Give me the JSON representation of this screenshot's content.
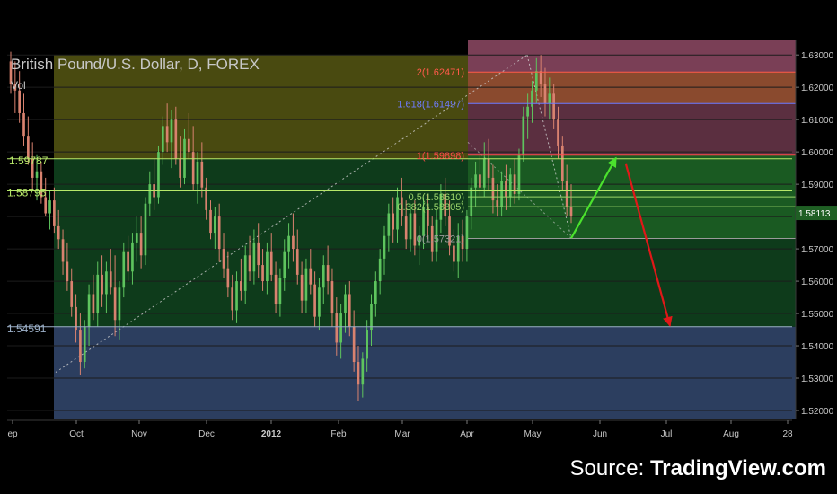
{
  "header": {
    "title": "British Pound/U.S. Dollar, D, FOREX",
    "volume_label": "Vol"
  },
  "footer": {
    "source_prefix": "Source: ",
    "source_brand": "TradingView.com"
  },
  "chart_data": {
    "type": "candlestick",
    "symbol": "GBPUSD",
    "interval": "D",
    "x_ticks": [
      "ep",
      "Oct",
      "Nov",
      "Dec",
      "2012",
      "Feb",
      "Mar",
      "Apr",
      "May",
      "Jun",
      "Jul",
      "Aug",
      "28"
    ],
    "y_ticks": [
      1.63,
      1.62,
      1.61,
      1.6,
      1.59,
      1.58,
      1.57,
      1.56,
      1.55,
      1.54,
      1.53,
      1.52
    ],
    "ylim": [
      1.5175,
      1.6345
    ],
    "last_price": 1.58113,
    "last_price_label": "1.58113",
    "colors": {
      "up": "#5ec45e",
      "down": "#d9826f",
      "background": "#000000",
      "gridline": "#1c1c1c"
    },
    "horizontal_levels": [
      {
        "label": "1.59787",
        "price": 1.59787,
        "color": "#b7e86a"
      },
      {
        "label": "1.58795",
        "price": 1.58795,
        "color": "#b7e86a"
      },
      {
        "label": "1.54591",
        "price": 1.54591,
        "color": "#9cb0c8"
      }
    ],
    "fibonacci_levels": [
      {
        "ratio": "2",
        "label": "2(1.62471)",
        "price": 1.62471,
        "color": "#ff5a4a"
      },
      {
        "ratio": "1.618",
        "label": "1.618(1.61497)",
        "price": 1.61497,
        "color": "#6f7cff"
      },
      {
        "ratio": "1",
        "label": "1(1.59898)",
        "price": 1.59898,
        "color": "#ff4a4a"
      },
      {
        "ratio": "0.5",
        "label": "0.5(1.58610)",
        "price": 1.5861,
        "color": "#9ad56a"
      },
      {
        "ratio": "0.382",
        "label": "0.382(1.58305)",
        "price": 1.58305,
        "color": "#9ad56a"
      },
      {
        "ratio": "0",
        "label": "0(1.57321)",
        "price": 1.57321,
        "color": "#9a9a9a"
      }
    ],
    "zones": [
      {
        "name": "upper",
        "color": "#494a10"
      },
      {
        "name": "middle",
        "color": "#0e3b1b"
      },
      {
        "name": "lower",
        "color": "#2c3e5f"
      },
      {
        "name": "projection-top",
        "color": "#7a3f56"
      },
      {
        "name": "projection-red",
        "color": "#8a4a2e"
      },
      {
        "name": "projection-green",
        "color": "#1a5a22"
      }
    ],
    "arrows": [
      {
        "name": "up-arrow",
        "from": {
          "date": "May 18",
          "price": 1.5733
        },
        "to": {
          "date": "Jun 10",
          "price": 1.5982
        },
        "color": "#4be22d"
      },
      {
        "name": "down-arrow",
        "from": {
          "date": "Jun 15",
          "price": 1.5962
        },
        "to": {
          "date": "Jul 05",
          "price": 1.5462
        },
        "color": "#e01818"
      }
    ],
    "candles": [
      {
        "o": 1.628,
        "h": 1.631,
        "l": 1.618,
        "c": 1.621
      },
      {
        "o": 1.621,
        "h": 1.628,
        "l": 1.612,
        "c": 1.619
      },
      {
        "o": 1.619,
        "h": 1.625,
        "l": 1.609,
        "c": 1.612
      },
      {
        "o": 1.612,
        "h": 1.618,
        "l": 1.602,
        "c": 1.605
      },
      {
        "o": 1.605,
        "h": 1.611,
        "l": 1.596,
        "c": 1.598
      },
      {
        "o": 1.598,
        "h": 1.603,
        "l": 1.588,
        "c": 1.592
      },
      {
        "o": 1.592,
        "h": 1.599,
        "l": 1.585,
        "c": 1.594
      },
      {
        "o": 1.594,
        "h": 1.597,
        "l": 1.584,
        "c": 1.586
      },
      {
        "o": 1.586,
        "h": 1.592,
        "l": 1.58,
        "c": 1.581
      },
      {
        "o": 1.581,
        "h": 1.588,
        "l": 1.576,
        "c": 1.585
      },
      {
        "o": 1.585,
        "h": 1.589,
        "l": 1.575,
        "c": 1.577
      },
      {
        "o": 1.577,
        "h": 1.582,
        "l": 1.57,
        "c": 1.573
      },
      {
        "o": 1.573,
        "h": 1.576,
        "l": 1.562,
        "c": 1.566
      },
      {
        "o": 1.566,
        "h": 1.572,
        "l": 1.557,
        "c": 1.56
      },
      {
        "o": 1.56,
        "h": 1.564,
        "l": 1.549,
        "c": 1.552
      },
      {
        "o": 1.552,
        "h": 1.556,
        "l": 1.541,
        "c": 1.545
      },
      {
        "o": 1.545,
        "h": 1.55,
        "l": 1.531,
        "c": 1.535
      },
      {
        "o": 1.535,
        "h": 1.548,
        "l": 1.533,
        "c": 1.546
      },
      {
        "o": 1.546,
        "h": 1.559,
        "l": 1.54,
        "c": 1.556
      },
      {
        "o": 1.556,
        "h": 1.562,
        "l": 1.548,
        "c": 1.55
      },
      {
        "o": 1.55,
        "h": 1.566,
        "l": 1.546,
        "c": 1.562
      },
      {
        "o": 1.562,
        "h": 1.568,
        "l": 1.552,
        "c": 1.556
      },
      {
        "o": 1.556,
        "h": 1.566,
        "l": 1.55,
        "c": 1.563
      },
      {
        "o": 1.563,
        "h": 1.57,
        "l": 1.556,
        "c": 1.558
      },
      {
        "o": 1.558,
        "h": 1.568,
        "l": 1.543,
        "c": 1.548
      },
      {
        "o": 1.548,
        "h": 1.56,
        "l": 1.542,
        "c": 1.558
      },
      {
        "o": 1.558,
        "h": 1.572,
        "l": 1.555,
        "c": 1.569
      },
      {
        "o": 1.569,
        "h": 1.574,
        "l": 1.56,
        "c": 1.563
      },
      {
        "o": 1.563,
        "h": 1.575,
        "l": 1.559,
        "c": 1.572
      },
      {
        "o": 1.572,
        "h": 1.58,
        "l": 1.566,
        "c": 1.575
      },
      {
        "o": 1.575,
        "h": 1.58,
        "l": 1.564,
        "c": 1.568
      },
      {
        "o": 1.568,
        "h": 1.586,
        "l": 1.565,
        "c": 1.584
      },
      {
        "o": 1.584,
        "h": 1.594,
        "l": 1.58,
        "c": 1.59
      },
      {
        "o": 1.59,
        "h": 1.598,
        "l": 1.582,
        "c": 1.586
      },
      {
        "o": 1.586,
        "h": 1.602,
        "l": 1.584,
        "c": 1.6
      },
      {
        "o": 1.6,
        "h": 1.611,
        "l": 1.596,
        "c": 1.608
      },
      {
        "o": 1.608,
        "h": 1.615,
        "l": 1.6,
        "c": 1.603
      },
      {
        "o": 1.603,
        "h": 1.613,
        "l": 1.595,
        "c": 1.61
      },
      {
        "o": 1.61,
        "h": 1.614,
        "l": 1.596,
        "c": 1.598
      },
      {
        "o": 1.598,
        "h": 1.605,
        "l": 1.589,
        "c": 1.592
      },
      {
        "o": 1.592,
        "h": 1.607,
        "l": 1.59,
        "c": 1.604
      },
      {
        "o": 1.604,
        "h": 1.612,
        "l": 1.598,
        "c": 1.6
      },
      {
        "o": 1.6,
        "h": 1.608,
        "l": 1.588,
        "c": 1.59
      },
      {
        "o": 1.59,
        "h": 1.6,
        "l": 1.584,
        "c": 1.597
      },
      {
        "o": 1.597,
        "h": 1.603,
        "l": 1.586,
        "c": 1.589
      },
      {
        "o": 1.589,
        "h": 1.592,
        "l": 1.579,
        "c": 1.582
      },
      {
        "o": 1.582,
        "h": 1.585,
        "l": 1.573,
        "c": 1.575
      },
      {
        "o": 1.575,
        "h": 1.583,
        "l": 1.57,
        "c": 1.58
      },
      {
        "o": 1.58,
        "h": 1.584,
        "l": 1.566,
        "c": 1.57
      },
      {
        "o": 1.57,
        "h": 1.575,
        "l": 1.561,
        "c": 1.564
      },
      {
        "o": 1.564,
        "h": 1.569,
        "l": 1.555,
        "c": 1.558
      },
      {
        "o": 1.558,
        "h": 1.562,
        "l": 1.548,
        "c": 1.551
      },
      {
        "o": 1.551,
        "h": 1.563,
        "l": 1.547,
        "c": 1.56
      },
      {
        "o": 1.56,
        "h": 1.567,
        "l": 1.554,
        "c": 1.557
      },
      {
        "o": 1.557,
        "h": 1.571,
        "l": 1.553,
        "c": 1.568
      },
      {
        "o": 1.568,
        "h": 1.574,
        "l": 1.56,
        "c": 1.563
      },
      {
        "o": 1.563,
        "h": 1.576,
        "l": 1.559,
        "c": 1.572
      },
      {
        "o": 1.572,
        "h": 1.578,
        "l": 1.561,
        "c": 1.565
      },
      {
        "o": 1.565,
        "h": 1.57,
        "l": 1.557,
        "c": 1.56
      },
      {
        "o": 1.56,
        "h": 1.572,
        "l": 1.556,
        "c": 1.569
      },
      {
        "o": 1.569,
        "h": 1.575,
        "l": 1.56,
        "c": 1.562
      },
      {
        "o": 1.562,
        "h": 1.566,
        "l": 1.55,
        "c": 1.553
      },
      {
        "o": 1.553,
        "h": 1.564,
        "l": 1.549,
        "c": 1.561
      },
      {
        "o": 1.561,
        "h": 1.573,
        "l": 1.557,
        "c": 1.569
      },
      {
        "o": 1.569,
        "h": 1.578,
        "l": 1.564,
        "c": 1.574
      },
      {
        "o": 1.574,
        "h": 1.581,
        "l": 1.566,
        "c": 1.57
      },
      {
        "o": 1.57,
        "h": 1.576,
        "l": 1.559,
        "c": 1.562
      },
      {
        "o": 1.562,
        "h": 1.566,
        "l": 1.55,
        "c": 1.554
      },
      {
        "o": 1.554,
        "h": 1.567,
        "l": 1.55,
        "c": 1.564
      },
      {
        "o": 1.564,
        "h": 1.57,
        "l": 1.556,
        "c": 1.559
      },
      {
        "o": 1.559,
        "h": 1.563,
        "l": 1.546,
        "c": 1.549
      },
      {
        "o": 1.549,
        "h": 1.561,
        "l": 1.545,
        "c": 1.558
      },
      {
        "o": 1.558,
        "h": 1.568,
        "l": 1.553,
        "c": 1.565
      },
      {
        "o": 1.565,
        "h": 1.571,
        "l": 1.556,
        "c": 1.56
      },
      {
        "o": 1.56,
        "h": 1.564,
        "l": 1.546,
        "c": 1.55
      },
      {
        "o": 1.55,
        "h": 1.555,
        "l": 1.537,
        "c": 1.541
      },
      {
        "o": 1.541,
        "h": 1.553,
        "l": 1.536,
        "c": 1.55
      },
      {
        "o": 1.55,
        "h": 1.559,
        "l": 1.544,
        "c": 1.556
      },
      {
        "o": 1.556,
        "h": 1.56,
        "l": 1.543,
        "c": 1.546
      },
      {
        "o": 1.546,
        "h": 1.551,
        "l": 1.532,
        "c": 1.535
      },
      {
        "o": 1.535,
        "h": 1.54,
        "l": 1.523,
        "c": 1.528
      },
      {
        "o": 1.528,
        "h": 1.538,
        "l": 1.524,
        "c": 1.536
      },
      {
        "o": 1.536,
        "h": 1.548,
        "l": 1.532,
        "c": 1.545
      },
      {
        "o": 1.545,
        "h": 1.556,
        "l": 1.54,
        "c": 1.553
      },
      {
        "o": 1.553,
        "h": 1.563,
        "l": 1.549,
        "c": 1.56
      },
      {
        "o": 1.56,
        "h": 1.57,
        "l": 1.556,
        "c": 1.567
      },
      {
        "o": 1.567,
        "h": 1.577,
        "l": 1.562,
        "c": 1.574
      },
      {
        "o": 1.574,
        "h": 1.584,
        "l": 1.569,
        "c": 1.581
      },
      {
        "o": 1.581,
        "h": 1.586,
        "l": 1.572,
        "c": 1.576
      },
      {
        "o": 1.576,
        "h": 1.589,
        "l": 1.572,
        "c": 1.586
      },
      {
        "o": 1.586,
        "h": 1.592,
        "l": 1.577,
        "c": 1.58
      },
      {
        "o": 1.58,
        "h": 1.585,
        "l": 1.57,
        "c": 1.573
      },
      {
        "o": 1.573,
        "h": 1.584,
        "l": 1.569,
        "c": 1.581
      },
      {
        "o": 1.581,
        "h": 1.585,
        "l": 1.568,
        "c": 1.571
      },
      {
        "o": 1.571,
        "h": 1.577,
        "l": 1.565,
        "c": 1.574
      },
      {
        "o": 1.574,
        "h": 1.586,
        "l": 1.57,
        "c": 1.583
      },
      {
        "o": 1.583,
        "h": 1.587,
        "l": 1.573,
        "c": 1.577
      },
      {
        "o": 1.577,
        "h": 1.58,
        "l": 1.566,
        "c": 1.569
      },
      {
        "o": 1.569,
        "h": 1.582,
        "l": 1.566,
        "c": 1.579
      },
      {
        "o": 1.579,
        "h": 1.59,
        "l": 1.575,
        "c": 1.587
      },
      {
        "o": 1.587,
        "h": 1.592,
        "l": 1.577,
        "c": 1.58
      },
      {
        "o": 1.58,
        "h": 1.585,
        "l": 1.568,
        "c": 1.571
      },
      {
        "o": 1.571,
        "h": 1.576,
        "l": 1.563,
        "c": 1.566
      },
      {
        "o": 1.566,
        "h": 1.578,
        "l": 1.561,
        "c": 1.574
      },
      {
        "o": 1.574,
        "h": 1.579,
        "l": 1.566,
        "c": 1.57
      },
      {
        "o": 1.57,
        "h": 1.582,
        "l": 1.566,
        "c": 1.58
      },
      {
        "o": 1.58,
        "h": 1.592,
        "l": 1.576,
        "c": 1.589
      },
      {
        "o": 1.589,
        "h": 1.597,
        "l": 1.583,
        "c": 1.593
      },
      {
        "o": 1.593,
        "h": 1.6,
        "l": 1.586,
        "c": 1.589
      },
      {
        "o": 1.589,
        "h": 1.603,
        "l": 1.586,
        "c": 1.598
      },
      {
        "o": 1.598,
        "h": 1.604,
        "l": 1.588,
        "c": 1.592
      },
      {
        "o": 1.592,
        "h": 1.596,
        "l": 1.581,
        "c": 1.585
      },
      {
        "o": 1.585,
        "h": 1.59,
        "l": 1.58,
        "c": 1.583
      },
      {
        "o": 1.583,
        "h": 1.594,
        "l": 1.58,
        "c": 1.591
      },
      {
        "o": 1.591,
        "h": 1.596,
        "l": 1.582,
        "c": 1.586
      },
      {
        "o": 1.586,
        "h": 1.595,
        "l": 1.583,
        "c": 1.593
      },
      {
        "o": 1.593,
        "h": 1.598,
        "l": 1.584,
        "c": 1.587
      },
      {
        "o": 1.587,
        "h": 1.601,
        "l": 1.585,
        "c": 1.599
      },
      {
        "o": 1.599,
        "h": 1.614,
        "l": 1.597,
        "c": 1.611
      },
      {
        "o": 1.611,
        "h": 1.618,
        "l": 1.604,
        "c": 1.614
      },
      {
        "o": 1.614,
        "h": 1.622,
        "l": 1.609,
        "c": 1.619
      },
      {
        "o": 1.619,
        "h": 1.629,
        "l": 1.615,
        "c": 1.625
      },
      {
        "o": 1.625,
        "h": 1.63,
        "l": 1.617,
        "c": 1.621
      },
      {
        "o": 1.621,
        "h": 1.626,
        "l": 1.611,
        "c": 1.615
      },
      {
        "o": 1.615,
        "h": 1.623,
        "l": 1.61,
        "c": 1.618
      },
      {
        "o": 1.618,
        "h": 1.621,
        "l": 1.607,
        "c": 1.61
      },
      {
        "o": 1.61,
        "h": 1.614,
        "l": 1.598,
        "c": 1.602
      },
      {
        "o": 1.602,
        "h": 1.605,
        "l": 1.588,
        "c": 1.591
      },
      {
        "o": 1.591,
        "h": 1.596,
        "l": 1.58,
        "c": 1.583
      },
      {
        "o": 1.583,
        "h": 1.59,
        "l": 1.578,
        "c": 1.58
      }
    ]
  }
}
